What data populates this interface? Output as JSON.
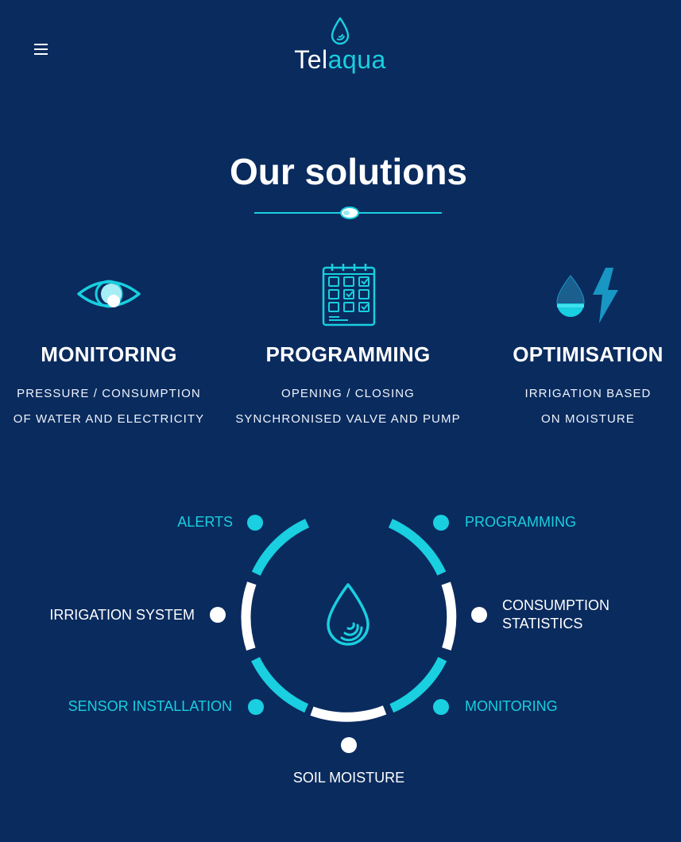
{
  "header": {
    "logo_part1": "Tel",
    "logo_part2": "aqua",
    "menu_icon": "hamburger-icon"
  },
  "section": {
    "title": "Our solutions"
  },
  "solutions": [
    {
      "icon": "eye-icon",
      "heading": "MONITORING",
      "line1": "PRESSURE / CONSUMPTION",
      "line2": "OF WATER AND ELECTRICITY"
    },
    {
      "icon": "calendar-icon",
      "heading": "PROGRAMMING",
      "line1": "OPENING / CLOSING",
      "line2": "SYNCHRONISED VALVE AND PUMP"
    },
    {
      "icon": "drop-lightning-icon",
      "heading": "OPTIMISATION",
      "line1": "IRRIGATION BASED",
      "line2": "ON MOISTURE"
    }
  ],
  "wheel": {
    "center_icon": "water-drop-icon",
    "labels": {
      "alerts": "ALERTS",
      "programming": "PROGRAMMING",
      "irrigation_system": "IRRIGATION SYSTEM",
      "consumption_line1": "CONSUMPTION",
      "consumption_line2": "STATISTICS",
      "sensor_installation": "SENSOR INSTALLATION",
      "monitoring": "MONITORING",
      "soil_moisture": "SOIL MOISTURE"
    }
  },
  "colors": {
    "background": "#0a2b5e",
    "accent": "#19cfe0",
    "text": "#ffffff"
  }
}
